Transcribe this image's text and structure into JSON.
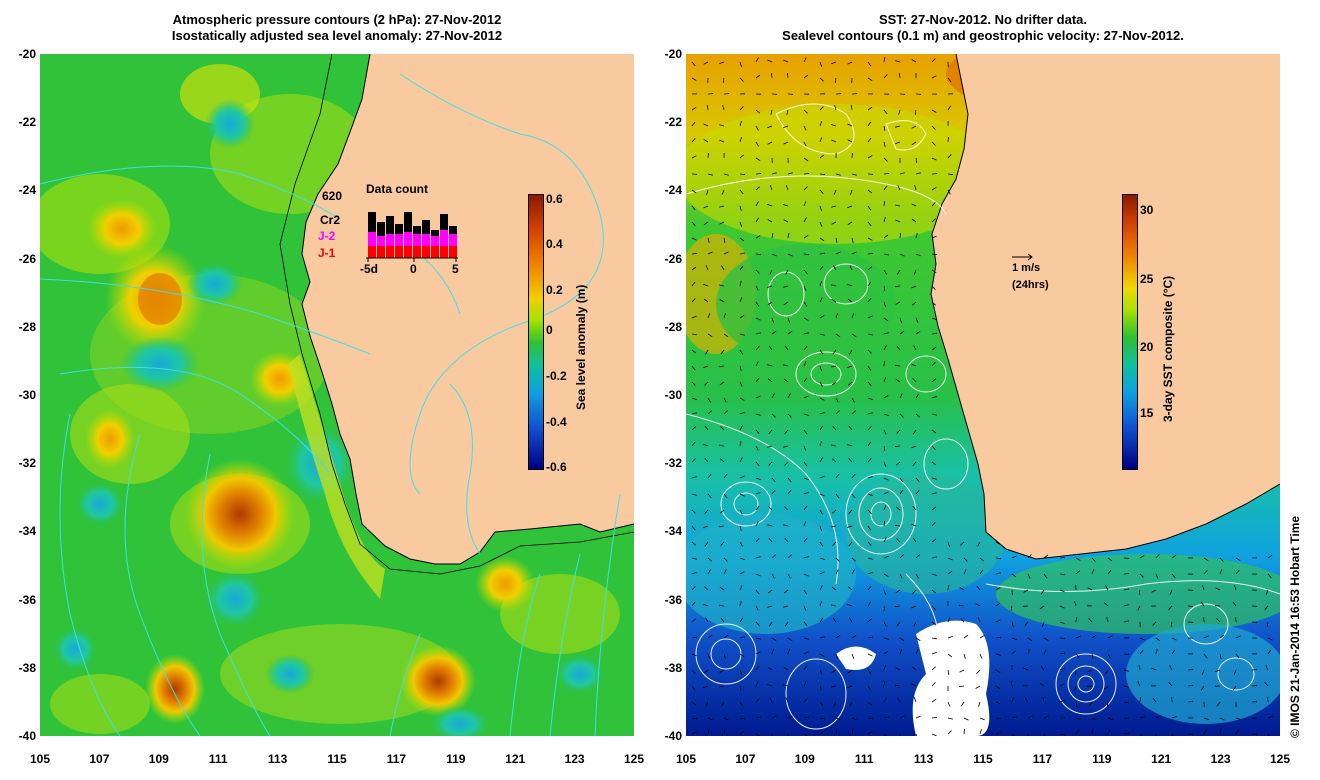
{
  "left": {
    "title_line1": "Atmospheric pressure contours (2 hPa): 27-Nov-2012",
    "title_line2": "Isostatically adjusted sea level anomaly: 27-Nov-2012",
    "colorbar": {
      "label": "Sea level anomaly (m)",
      "ticks": [
        "0.6",
        "0.4",
        "0.2",
        "0",
        "-0.2",
        "-0.4",
        "-0.6"
      ]
    },
    "inset": {
      "total": "620",
      "title": "Data count",
      "missions": [
        {
          "name": "Cr2",
          "color": "#000000"
        },
        {
          "name": "J-2",
          "color": "#ff00ff"
        },
        {
          "name": "J-1",
          "color": "#ff0000"
        }
      ],
      "xticks": [
        "-5d",
        "0",
        "5"
      ]
    }
  },
  "right": {
    "title_line1": "SST: 27-Nov-2012. No drifter data.",
    "title_line2": "Sealevel contours (0.1 m) and geostrophic velocity: 27-Nov-2012.",
    "colorbar": {
      "label": "3-day SST composite (°C)",
      "ticks": [
        "30",
        "25",
        "20",
        "15"
      ]
    },
    "vector_key": {
      "speed": "1 m/s",
      "period": "(24hrs)"
    }
  },
  "axes": {
    "y_ticks": [
      "-20",
      "-22",
      "-24",
      "-26",
      "-28",
      "-30",
      "-32",
      "-34",
      "-36",
      "-38",
      "-40"
    ],
    "x_ticks": [
      "105",
      "107",
      "109",
      "111",
      "113",
      "115",
      "117",
      "119",
      "121",
      "123",
      "125"
    ]
  },
  "colors": {
    "land": "#f9c9a0",
    "ocean_base": "#2fc52f",
    "contour": "#40e0e0"
  },
  "credit": "© IMOS 21-Jan-2014 16:53 Hobart Time"
}
